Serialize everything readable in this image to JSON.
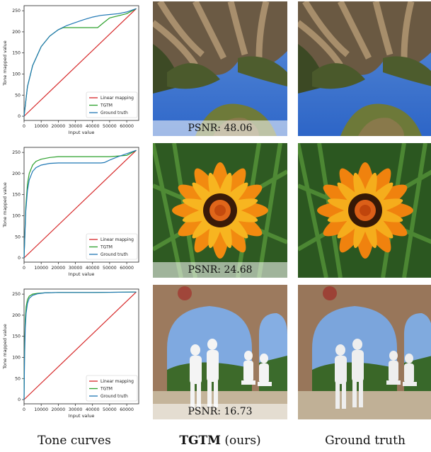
{
  "chart_data": [
    {
      "type": "line",
      "xlabel": "Input value",
      "ylabel": "Tone mapped value",
      "xlim": [
        0,
        67000
      ],
      "ylim": [
        -10,
        262
      ],
      "xticks": [
        "0",
        "10000",
        "20000",
        "30000",
        "40000",
        "50000",
        "60000"
      ],
      "yticks": [
        "0",
        "50",
        "100",
        "150",
        "200",
        "250"
      ],
      "legend_position": "lower-right",
      "series": [
        {
          "name": "Linear mapping",
          "color": "#d62728",
          "x": [
            0,
            65535
          ],
          "y": [
            0,
            255
          ]
        },
        {
          "name": "TGTM",
          "color": "#2ca02c",
          "x": [
            0,
            2000,
            5000,
            10000,
            15000,
            20000,
            23000,
            26000,
            30000,
            35000,
            40000,
            43000,
            46000,
            50000,
            55000,
            60000,
            65535
          ],
          "y": [
            0,
            70,
            120,
            165,
            190,
            205,
            210,
            210,
            210,
            210,
            210,
            210,
            220,
            233,
            238,
            243,
            255
          ]
        },
        {
          "name": "Ground truth",
          "color": "#1f77b4",
          "x": [
            0,
            2000,
            5000,
            10000,
            15000,
            20000,
            25000,
            30000,
            35000,
            40000,
            45000,
            50000,
            55000,
            60000,
            65535
          ],
          "y": [
            0,
            70,
            120,
            165,
            190,
            205,
            215,
            222,
            229,
            235,
            239,
            241,
            243,
            247,
            255
          ]
        }
      ]
    },
    {
      "type": "line",
      "xlabel": "Input value",
      "ylabel": "Tone mapped value",
      "xlim": [
        0,
        67000
      ],
      "ylim": [
        -10,
        262
      ],
      "xticks": [
        "0",
        "10000",
        "20000",
        "30000",
        "40000",
        "50000",
        "60000"
      ],
      "yticks": [
        "0",
        "50",
        "100",
        "150",
        "200",
        "250"
      ],
      "legend_position": "lower-right",
      "series": [
        {
          "name": "Linear mapping",
          "color": "#d62728",
          "x": [
            0,
            65535
          ],
          "y": [
            0,
            255
          ]
        },
        {
          "name": "TGTM",
          "color": "#2ca02c",
          "x": [
            0,
            1000,
            2000,
            3000,
            5000,
            7000,
            10000,
            15000,
            20000,
            25000,
            30000,
            40000,
            50000,
            60000,
            65535
          ],
          "y": [
            0,
            120,
            175,
            200,
            220,
            229,
            234,
            238,
            240,
            240,
            240,
            240,
            240,
            243,
            255
          ]
        },
        {
          "name": "Ground truth",
          "color": "#1f77b4",
          "x": [
            0,
            1000,
            2000,
            3000,
            5000,
            7000,
            10000,
            15000,
            20000,
            30000,
            40000,
            45000,
            47000,
            50000,
            55000,
            60000,
            65535
          ],
          "y": [
            0,
            110,
            160,
            185,
            205,
            214,
            220,
            224,
            225,
            225,
            225,
            225,
            226,
            232,
            240,
            247,
            255
          ]
        }
      ]
    },
    {
      "type": "line",
      "xlabel": "Input value",
      "ylabel": "Tone mapped value",
      "xlim": [
        0,
        67000
      ],
      "ylim": [
        -10,
        262
      ],
      "xticks": [
        "0",
        "10000",
        "20000",
        "30000",
        "40000",
        "50000",
        "60000"
      ],
      "yticks": [
        "0",
        "50",
        "100",
        "150",
        "200",
        "250"
      ],
      "legend_position": "lower-right",
      "series": [
        {
          "name": "Linear mapping",
          "color": "#d62728",
          "x": [
            0,
            65535
          ],
          "y": [
            0,
            255
          ]
        },
        {
          "name": "TGTM",
          "color": "#2ca02c",
          "x": [
            0,
            300,
            700,
            1200,
            2000,
            3000,
            5000,
            8000,
            12000,
            20000,
            40000,
            65535
          ],
          "y": [
            0,
            120,
            190,
            220,
            237,
            245,
            250,
            252,
            253,
            254,
            254,
            255
          ]
        },
        {
          "name": "Ground truth",
          "color": "#1f77b4",
          "x": [
            0,
            300,
            700,
            1200,
            2000,
            3000,
            5000,
            8000,
            12000,
            20000,
            40000,
            65535
          ],
          "y": [
            0,
            100,
            170,
            205,
            228,
            240,
            247,
            251,
            253,
            254,
            254,
            255
          ]
        }
      ]
    }
  ],
  "rows": [
    {
      "psnr": "PSNR: 48.06"
    },
    {
      "psnr": "PSNR: 24.68"
    },
    {
      "psnr": "PSNR: 16.73"
    }
  ],
  "captions": {
    "col1": "Tone curves",
    "col2_bold": "TGTM",
    "col2_rest": " (ours)",
    "col3": "Ground truth"
  }
}
